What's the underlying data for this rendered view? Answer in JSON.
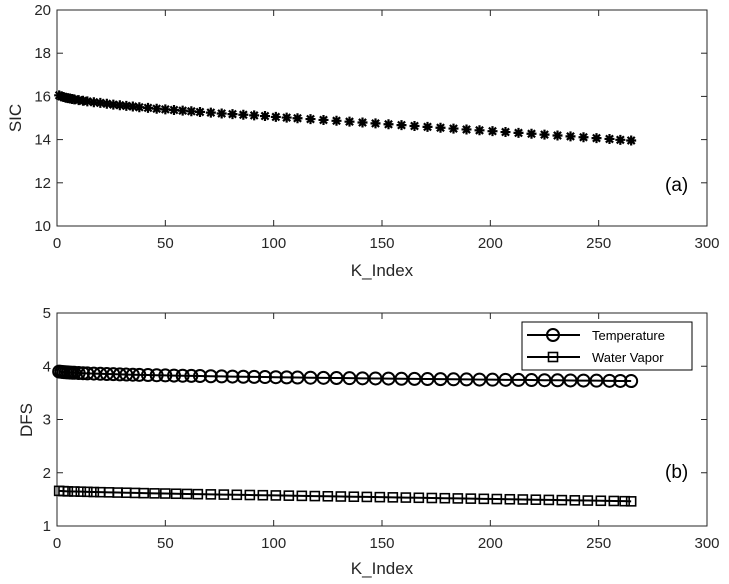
{
  "chart_data": [
    {
      "type": "scatter",
      "panel_label": "(a)",
      "xlabel": "K_Index",
      "ylabel": "SIC",
      "xlim": [
        0,
        300
      ],
      "ylim": [
        10,
        20
      ],
      "xticks": [
        "0",
        "50",
        "100",
        "150",
        "200",
        "250",
        "300"
      ],
      "yticks": [
        "10",
        "12",
        "14",
        "16",
        "18",
        "20"
      ],
      "grid": false,
      "series": [
        {
          "marker": "asterisk",
          "color": "#000000",
          "x": [
            1,
            2,
            3,
            4,
            5,
            6,
            7,
            8,
            10,
            12,
            14,
            17,
            20,
            23,
            26,
            29,
            32,
            35,
            38,
            42,
            46,
            50,
            54,
            58,
            62,
            66,
            71,
            76,
            81,
            86,
            91,
            96,
            101,
            106,
            111,
            117,
            123,
            129,
            135,
            141,
            147,
            153,
            159,
            165,
            171,
            177,
            183,
            189,
            195,
            201,
            207,
            213,
            219,
            225,
            231,
            237,
            243,
            249,
            255,
            260,
            265
          ],
          "y": [
            16.05,
            16.0,
            15.97,
            15.94,
            15.92,
            15.9,
            15.88,
            15.86,
            15.83,
            15.8,
            15.77,
            15.73,
            15.7,
            15.66,
            15.62,
            15.59,
            15.56,
            15.53,
            15.5,
            15.47,
            15.43,
            15.4,
            15.37,
            15.34,
            15.31,
            15.28,
            15.25,
            15.21,
            15.18,
            15.15,
            15.12,
            15.09,
            15.05,
            15.02,
            14.99,
            14.95,
            14.91,
            14.87,
            14.83,
            14.79,
            14.75,
            14.71,
            14.67,
            14.63,
            14.59,
            14.55,
            14.51,
            14.47,
            14.43,
            14.39,
            14.35,
            14.31,
            14.27,
            14.23,
            14.19,
            14.15,
            14.11,
            14.07,
            14.03,
            13.99,
            13.96
          ]
        }
      ]
    },
    {
      "type": "line",
      "panel_label": "(b)",
      "xlabel": "K_Index",
      "ylabel": "DFS",
      "xlim": [
        0,
        300
      ],
      "ylim": [
        1,
        5
      ],
      "xticks": [
        "0",
        "50",
        "100",
        "150",
        "200",
        "250",
        "300"
      ],
      "yticks": [
        "1",
        "2",
        "3",
        "4",
        "5"
      ],
      "grid": false,
      "legend_position": "top-right",
      "series": [
        {
          "name": "Temperature",
          "marker": "circle",
          "color": "#000000",
          "x": [
            1,
            2,
            3,
            4,
            5,
            6,
            7,
            8,
            10,
            12,
            14,
            17,
            20,
            23,
            26,
            29,
            32,
            35,
            38,
            42,
            46,
            50,
            54,
            58,
            62,
            66,
            71,
            76,
            81,
            86,
            91,
            96,
            101,
            106,
            111,
            117,
            123,
            129,
            135,
            141,
            147,
            153,
            159,
            165,
            171,
            177,
            183,
            189,
            195,
            201,
            207,
            213,
            219,
            225,
            231,
            237,
            243,
            249,
            255,
            260,
            265
          ],
          "y": [
            3.9,
            3.895,
            3.89,
            3.887,
            3.884,
            3.881,
            3.879,
            3.877,
            3.873,
            3.869,
            3.866,
            3.862,
            3.858,
            3.854,
            3.851,
            3.847,
            3.844,
            3.841,
            3.838,
            3.835,
            3.831,
            3.828,
            3.825,
            3.822,
            3.819,
            3.816,
            3.812,
            3.809,
            3.806,
            3.803,
            3.8,
            3.797,
            3.794,
            3.791,
            3.788,
            3.785,
            3.782,
            3.779,
            3.776,
            3.773,
            3.771,
            3.768,
            3.765,
            3.763,
            3.76,
            3.758,
            3.755,
            3.753,
            3.75,
            3.748,
            3.745,
            3.743,
            3.741,
            3.738,
            3.736,
            3.733,
            3.731,
            3.729,
            3.726,
            3.724,
            3.722
          ]
        },
        {
          "name": "Water Vapor",
          "marker": "square",
          "color": "#000000",
          "x": [
            1,
            3,
            5,
            8,
            11,
            14,
            17,
            20,
            24,
            28,
            32,
            36,
            40,
            45,
            50,
            55,
            60,
            65,
            71,
            77,
            83,
            89,
            95,
            101,
            107,
            113,
            119,
            125,
            131,
            137,
            143,
            149,
            155,
            161,
            167,
            173,
            179,
            185,
            191,
            197,
            203,
            209,
            215,
            221,
            227,
            233,
            239,
            245,
            251,
            257,
            262,
            265
          ],
          "y": [
            1.66,
            1.655,
            1.65,
            1.648,
            1.645,
            1.642,
            1.638,
            1.635,
            1.632,
            1.628,
            1.625,
            1.621,
            1.617,
            1.613,
            1.61,
            1.606,
            1.602,
            1.598,
            1.594,
            1.59,
            1.586,
            1.582,
            1.578,
            1.574,
            1.57,
            1.566,
            1.562,
            1.558,
            1.554,
            1.55,
            1.546,
            1.542,
            1.538,
            1.534,
            1.53,
            1.526,
            1.522,
            1.518,
            1.514,
            1.51,
            1.506,
            1.502,
            1.498,
            1.494,
            1.49,
            1.486,
            1.482,
            1.478,
            1.474,
            1.47,
            1.466,
            1.463
          ]
        }
      ]
    }
  ]
}
